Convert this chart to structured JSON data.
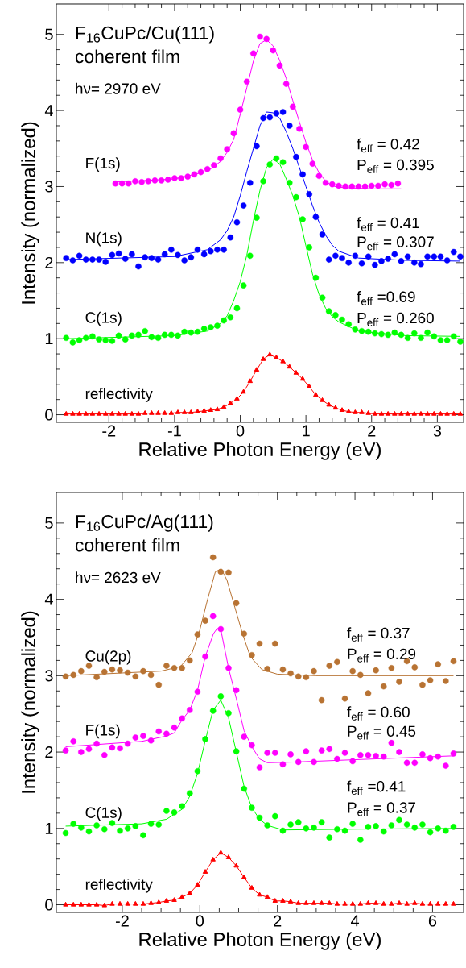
{
  "chart_data": [
    {
      "type": "scatter",
      "title": "F$_{16}$CuPc/Cu(111)",
      "subtitle": "coherent film",
      "xlabel": "Relative Photon Energy (eV)",
      "ylabel": "Intensity (normalized)",
      "annotations": [
        "hν= 2970 eV",
        "f$_{eff}$ = 0.42",
        "P$_{eff}$ = 0.395",
        "f$_{eff}$ = 0.41",
        "P$_{eff}$ = 0.307",
        "f$_{eff}$ =0.69",
        "P$_{eff}$ = 0.260"
      ],
      "xlim": [
        -2.8,
        3.4
      ],
      "ylim": [
        -0.1,
        5.4
      ],
      "xticks": [
        -2,
        -1,
        0,
        1,
        2,
        3
      ],
      "yticks": [
        0,
        1,
        2,
        3,
        4,
        5
      ],
      "x": [
        -2.65,
        -2.55,
        -2.45,
        -2.35,
        -2.25,
        -2.15,
        -2.05,
        -1.95,
        -1.85,
        -1.75,
        -1.65,
        -1.55,
        -1.45,
        -1.35,
        -1.25,
        -1.15,
        -1.05,
        -0.95,
        -0.85,
        -0.75,
        -0.65,
        -0.55,
        -0.45,
        -0.35,
        -0.25,
        -0.15,
        -0.05,
        0.05,
        0.15,
        0.25,
        0.35,
        0.45,
        0.55,
        0.65,
        0.75,
        0.85,
        0.95,
        1.05,
        1.15,
        1.25,
        1.35,
        1.45,
        1.55,
        1.65,
        1.75,
        1.85,
        1.95,
        2.05,
        2.15,
        2.25,
        2.35,
        2.45,
        2.55,
        2.65,
        2.75,
        2.85,
        2.95,
        3.05,
        3.15,
        3.25,
        3.35
      ],
      "series": [
        {
          "type": "line",
          "color": "#ff00ff",
          "marker": "none",
          "x": [
            -1.9,
            -1.0,
            -0.5,
            -0.3,
            -0.2,
            -0.1,
            0.0,
            0.1,
            0.2,
            0.3,
            0.4,
            0.5,
            0.6,
            0.7,
            0.8,
            0.9,
            1.0,
            1.1,
            1.2,
            1.3,
            1.4,
            1.5,
            2.0,
            2.45
          ],
          "values": [
            3.06,
            3.1,
            3.2,
            3.33,
            3.45,
            3.62,
            3.95,
            4.3,
            4.65,
            4.88,
            4.93,
            4.85,
            4.66,
            4.42,
            4.13,
            3.85,
            3.58,
            3.35,
            3.18,
            3.07,
            3.01,
            2.99,
            2.97,
            2.97
          ]
        },
        {
          "name": "F(1s)",
          "color": "#ff00ff",
          "marker": "circle",
          "x": [
            -1.9,
            -1.8,
            -1.7,
            -1.6,
            -1.5,
            -1.4,
            -1.3,
            -1.2,
            -1.1,
            -1.0,
            -0.9,
            -0.8,
            -0.7,
            -0.6,
            -0.5,
            -0.4,
            -0.3,
            -0.2,
            -0.1,
            0.0,
            0.1,
            0.2,
            0.3,
            0.4,
            0.5,
            0.6,
            0.7,
            0.8,
            0.9,
            1.0,
            1.1,
            1.2,
            1.3,
            1.4,
            1.5,
            1.6,
            1.7,
            1.8,
            1.9,
            2.0,
            2.1,
            2.2,
            2.3,
            2.4
          ],
          "values": [
            3.04,
            3.04,
            3.04,
            3.07,
            3.06,
            3.07,
            3.08,
            3.08,
            3.09,
            3.11,
            3.11,
            3.13,
            3.16,
            3.19,
            3.23,
            3.28,
            3.37,
            3.49,
            3.7,
            4.01,
            4.38,
            4.75,
            4.97,
            4.94,
            4.79,
            4.59,
            4.35,
            4.05,
            3.76,
            3.52,
            3.3,
            3.14,
            3.05,
            3.03,
            3.01,
            3.0,
            3.0,
            3.0,
            3.0,
            3.01,
            3.01,
            3.03,
            3.02,
            3.04
          ]
        },
        {
          "type": "line",
          "color": "#0000ff",
          "marker": "none",
          "x": [
            -2.65,
            -1.0,
            -0.5,
            -0.3,
            -0.2,
            -0.1,
            0.0,
            0.1,
            0.2,
            0.3,
            0.4,
            0.5,
            0.6,
            0.7,
            0.8,
            0.9,
            1.0,
            1.1,
            1.2,
            1.3,
            1.4,
            1.5,
            1.8,
            2.5,
            3.35
          ],
          "values": [
            2.04,
            2.08,
            2.17,
            2.3,
            2.42,
            2.6,
            2.88,
            3.2,
            3.5,
            3.8,
            3.98,
            3.97,
            3.9,
            3.72,
            3.5,
            3.25,
            3.0,
            2.75,
            2.53,
            2.36,
            2.23,
            2.15,
            2.06,
            2.03,
            2.02
          ]
        },
        {
          "name": "N(1s)",
          "color": "#0000ff",
          "marker": "circle",
          "values": [
            2.06,
            2.03,
            2.09,
            2.04,
            2.04,
            2.04,
            2.01,
            2.1,
            2.12,
            2.05,
            2.11,
            1.95,
            2.07,
            2.06,
            2.04,
            2.11,
            2.17,
            2.1,
            2.03,
            2.07,
            2.17,
            2.11,
            2.15,
            2.17,
            2.17,
            2.33,
            2.53,
            2.75,
            3.05,
            3.53,
            3.9,
            3.91,
            3.96,
            3.98,
            3.8,
            3.39,
            3.16,
            2.9,
            2.6,
            2.37,
            2.04,
            2.09,
            2.06,
            2.0,
            2.09,
            1.99,
            2.08,
            1.97,
            2.02,
            2.05,
            2.11,
            2.02,
            2.08,
            2.0,
            1.98,
            2.08,
            2.08,
            2.08,
            2.03,
            2.14,
            2.08
          ]
        },
        {
          "type": "line",
          "color": "#00ff00",
          "marker": "none",
          "x": [
            -2.65,
            -1.0,
            -0.5,
            -0.3,
            -0.2,
            -0.1,
            0.0,
            0.1,
            0.2,
            0.3,
            0.4,
            0.5,
            0.6,
            0.7,
            0.8,
            0.9,
            1.0,
            1.1,
            1.2,
            1.3,
            1.4,
            1.5,
            1.8,
            2.5,
            3.35
          ],
          "values": [
            1.0,
            1.04,
            1.1,
            1.2,
            1.3,
            1.5,
            1.75,
            2.1,
            2.55,
            2.95,
            3.25,
            3.36,
            3.3,
            3.1,
            2.88,
            2.6,
            2.22,
            1.85,
            1.58,
            1.4,
            1.29,
            1.22,
            1.1,
            1.04,
            1.03
          ]
        },
        {
          "name": "C(1s)",
          "color": "#00ff00",
          "marker": "circle",
          "values": [
            1.01,
            0.95,
            0.98,
            1.01,
            1.03,
            0.99,
            0.98,
            0.97,
            1.04,
            0.99,
            1.04,
            1.05,
            1.1,
            1.02,
            1.01,
            1.05,
            1.05,
            1.04,
            1.09,
            1.08,
            1.09,
            1.13,
            1.15,
            1.17,
            1.24,
            1.28,
            1.4,
            1.7,
            2.09,
            2.59,
            3.07,
            3.29,
            3.37,
            3.32,
            3.05,
            2.86,
            2.57,
            2.2,
            1.8,
            1.54,
            1.36,
            1.31,
            1.25,
            1.19,
            1.12,
            1.1,
            1.09,
            1.07,
            1.06,
            1.05,
            1.08,
            1.05,
            1.01,
            1.07,
            1.01,
            1.08,
            1.03,
            0.98,
            0.98,
            1.03,
            0.96
          ]
        },
        {
          "type": "line",
          "name": "reflectivity",
          "color": "#ff0000",
          "marker": "triangle",
          "values": [
            0.01,
            0.01,
            0.01,
            0.01,
            0.01,
            0.01,
            0.01,
            0.01,
            0.01,
            0.01,
            0.01,
            0.01,
            0.02,
            0.02,
            0.02,
            0.02,
            0.02,
            0.03,
            0.03,
            0.03,
            0.04,
            0.05,
            0.06,
            0.07,
            0.1,
            0.15,
            0.21,
            0.3,
            0.44,
            0.59,
            0.73,
            0.79,
            0.75,
            0.7,
            0.63,
            0.55,
            0.47,
            0.37,
            0.26,
            0.19,
            0.13,
            0.09,
            0.06,
            0.04,
            0.03,
            0.03,
            0.02,
            0.01,
            0.01,
            0.01,
            0.01,
            0.01,
            0.01,
            0.01,
            0.01,
            0.01,
            0.01,
            0.01,
            0.01,
            0.01,
            0.01
          ]
        }
      ]
    },
    {
      "type": "scatter",
      "title": "F$_{16}$CuPc/Ag(111)",
      "subtitle": "coherent film",
      "xlabel": "Relative Photon Energy (eV)",
      "ylabel": "Intensity (normalized)",
      "annotations": [
        "hν= 2623 eV",
        "f$_{eff}$ = 0.37",
        "P$_{eff}$ = 0.29",
        "f$_{eff}$ = 0.60",
        "P$_{eff}$ = 0.45",
        "f$_{eff}$ =0.41",
        "P$_{eff}$ = 0.37"
      ],
      "xlim": [
        -3.7,
        6.8
      ],
      "ylim": [
        -0.1,
        5.4
      ],
      "xticks": [
        -2,
        0,
        2,
        4,
        6
      ],
      "yticks": [
        0,
        1,
        2,
        3,
        4,
        5
      ],
      "x": [
        -3.46,
        -3.26,
        -3.06,
        -2.86,
        -2.66,
        -2.46,
        -2.26,
        -2.06,
        -1.86,
        -1.66,
        -1.46,
        -1.26,
        -1.06,
        -0.86,
        -0.66,
        -0.46,
        -0.26,
        -0.06,
        0.14,
        0.34,
        0.54,
        0.74,
        0.94,
        1.14,
        1.34,
        1.54,
        1.74,
        1.94,
        2.14,
        2.34,
        2.54,
        2.74,
        2.94,
        3.14,
        3.34,
        3.54,
        3.74,
        3.94,
        4.14,
        4.34,
        4.54,
        4.74,
        4.94,
        5.14,
        5.34,
        5.54,
        5.74,
        5.94,
        6.14,
        6.34,
        6.54
      ],
      "series": [
        {
          "type": "line",
          "color": "#b87333",
          "marker": "none",
          "x": [
            -3.46,
            -1.0,
            -0.5,
            -0.2,
            0.0,
            0.2,
            0.4,
            0.55,
            0.7,
            0.9,
            1.1,
            1.3,
            1.6,
            2.0,
            3.0,
            6.54
          ],
          "values": [
            3.0,
            3.06,
            3.12,
            3.3,
            3.6,
            4.0,
            4.36,
            4.4,
            4.25,
            3.9,
            3.55,
            3.25,
            3.08,
            3.02,
            3.0,
            3.0
          ]
        },
        {
          "name": "Cu(2p)",
          "color": "#b87333",
          "marker": "circle",
          "values": [
            2.99,
            3.01,
            3.06,
            3.13,
            2.98,
            3.05,
            3.08,
            3.07,
            3.04,
            2.99,
            3.06,
            3.01,
            2.88,
            3.13,
            3.1,
            3.1,
            3.2,
            3.54,
            3.72,
            4.55,
            4.36,
            4.35,
            3.95,
            3.55,
            3.27,
            3.42,
            3.09,
            3.42,
            3.08,
            3.03,
            2.99,
            2.98,
            3.06,
            2.68,
            3.13,
            3.18,
            2.7,
            3.06,
            3.01,
            2.77,
            3.07,
            2.86,
            3.1,
            2.92,
            3.19,
            3.11,
            2.88,
            2.94,
            3.15,
            2.93,
            3.19
          ]
        },
        {
          "type": "line",
          "color": "#ff00ff",
          "marker": "none",
          "x": [
            -3.46,
            -1.5,
            -0.86,
            -0.66,
            -0.46,
            -0.26,
            -0.06,
            0.14,
            0.35,
            0.45,
            0.55,
            0.74,
            0.94,
            1.14,
            1.34,
            1.54,
            1.74,
            2.5,
            4.0,
            6.54
          ],
          "values": [
            2.07,
            2.14,
            2.21,
            2.25,
            2.42,
            2.55,
            2.81,
            3.25,
            3.55,
            3.62,
            3.58,
            3.1,
            2.7,
            2.28,
            2.07,
            1.91,
            1.86,
            1.87,
            1.9,
            1.95
          ]
        },
        {
          "name": "F(1s)",
          "color": "#ff00ff",
          "marker": "circle",
          "values": [
            2.02,
            2.14,
            2.0,
            2.04,
            2.11,
            1.96,
            2.06,
            2.05,
            2.11,
            2.19,
            2.21,
            2.15,
            2.27,
            2.24,
            2.32,
            2.44,
            2.55,
            2.79,
            3.25,
            3.78,
            3.61,
            3.1,
            2.81,
            2.2,
            2.09,
            1.8,
            1.99,
            1.99,
            1.84,
            1.97,
            1.87,
            2.01,
            1.87,
            2.02,
            2.04,
            1.91,
            1.99,
            1.88,
            1.96,
            1.96,
            1.95,
            1.94,
            2.12,
            2.0,
            1.86,
            1.86,
            1.97,
            1.92,
            1.94,
            1.82,
            1.98
          ]
        },
        {
          "type": "line",
          "color": "#00ff00",
          "marker": "none",
          "x": [
            -3.46,
            -1.5,
            -0.86,
            -0.46,
            -0.26,
            -0.06,
            0.14,
            0.34,
            0.54,
            0.74,
            0.94,
            1.14,
            1.34,
            1.54,
            1.74,
            2.14,
            4.0,
            6.54
          ],
          "values": [
            1.03,
            1.06,
            1.12,
            1.25,
            1.42,
            1.72,
            2.15,
            2.55,
            2.68,
            2.45,
            2.0,
            1.55,
            1.27,
            1.12,
            1.04,
            0.98,
            0.99,
            1.0
          ]
        },
        {
          "name": "C(1s)",
          "color": "#00ff00",
          "marker": "circle",
          "values": [
            0.94,
            1.06,
            1.01,
            0.96,
            1.04,
            0.99,
            1.07,
            0.97,
            1.0,
            1.03,
            0.91,
            1.06,
            1.05,
            1.23,
            1.21,
            1.29,
            1.46,
            1.75,
            2.17,
            2.54,
            2.73,
            2.51,
            2.01,
            1.52,
            1.27,
            1.14,
            1.04,
            1.16,
            0.97,
            1.05,
            1.08,
            1.0,
            1.01,
            1.08,
            0.88,
            0.99,
            0.97,
            1.06,
            0.85,
            1.02,
            1.03,
            0.96,
            1.04,
            1.11,
            1.05,
            1.01,
            1.05,
            0.95,
            1.0,
            0.97,
            1.02
          ]
        },
        {
          "type": "line",
          "name": "reflectivity",
          "color": "#ff0000",
          "marker": "triangle",
          "values": [
            0.0,
            0.0,
            0.0,
            0.0,
            0.0,
            -0.01,
            0.01,
            0.01,
            0.01,
            0.01,
            0.01,
            0.02,
            0.03,
            0.05,
            0.06,
            0.1,
            0.15,
            0.26,
            0.43,
            0.59,
            0.68,
            0.62,
            0.51,
            0.36,
            0.22,
            0.13,
            0.1,
            0.05,
            0.05,
            0.04,
            0.02,
            0.02,
            0.02,
            0.02,
            0.02,
            0.01,
            0.01,
            0.01,
            0.01,
            0.02,
            0.02,
            0.01,
            0.01,
            0.02,
            0.01,
            0.02,
            0.01,
            0.01,
            0.01,
            0.01,
            0.01
          ]
        }
      ]
    }
  ]
}
